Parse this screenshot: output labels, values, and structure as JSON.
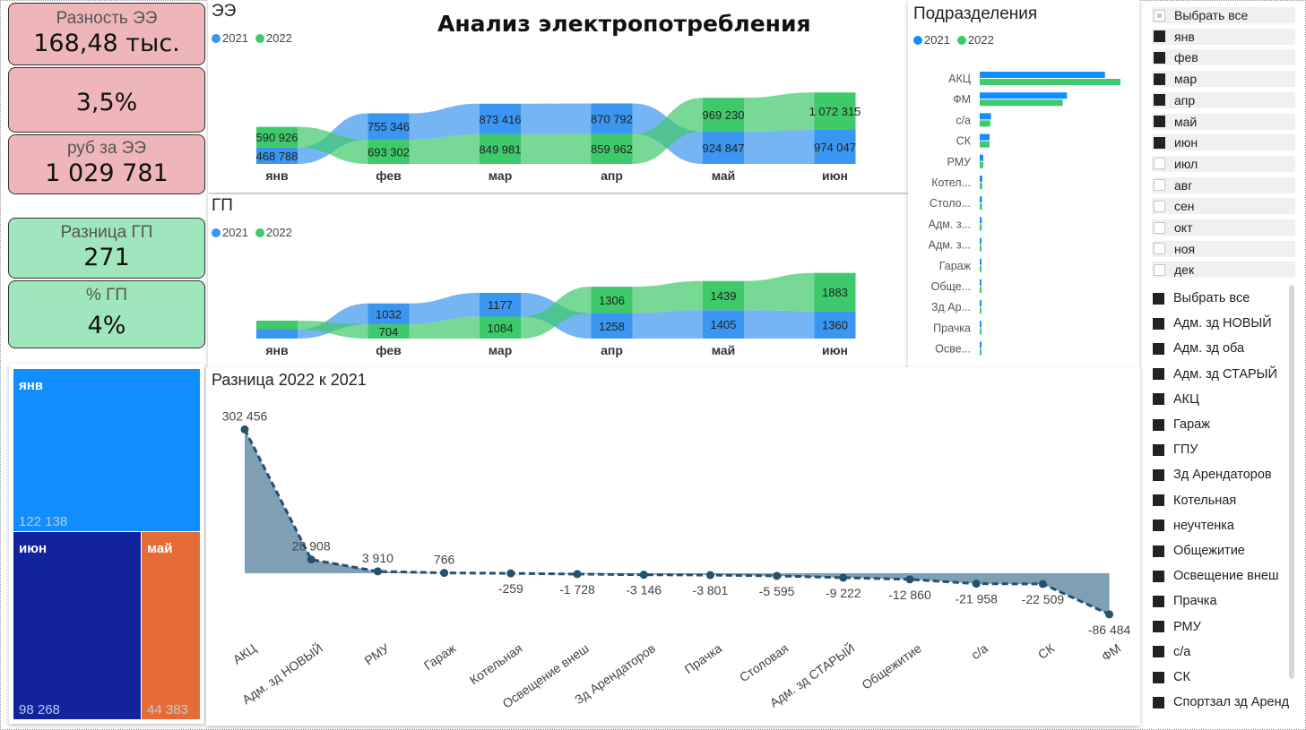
{
  "title": "Анализ электропотребления",
  "cards": {
    "ee_diff_label": "Разность ЭЭ",
    "ee_diff_value": "168,48 тыс.",
    "ee_pct_value": "3,5%",
    "rub_label": "руб за ЭЭ",
    "rub_value": "1 029 781",
    "gp_diff_label": "Разница ГП",
    "gp_diff_value": "271",
    "gp_pct_label": "% ГП",
    "gp_pct_value": "4%"
  },
  "colors": {
    "y2021": "#3a96f0",
    "y2022": "#3ec96a",
    "card_red": "#eeb6b9",
    "card_green": "#9fe6bd",
    "line": "#25506e",
    "area": "#7f9fb4"
  },
  "legend": {
    "y2021": "2021",
    "y2022": "2022"
  },
  "chart_data": [
    {
      "type": "area",
      "title": "ЭЭ",
      "categories": [
        "янв",
        "фев",
        "мар",
        "апр",
        "май",
        "июн"
      ],
      "series": [
        {
          "name": "2021",
          "values": [
            468788,
            755346,
            873416,
            870792,
            924847,
            974047
          ],
          "labels": [
            "468 788",
            "755 346",
            "873 416",
            "870 792",
            "924 847",
            "974 047"
          ]
        },
        {
          "name": "2022",
          "values": [
            590926,
            693302,
            849981,
            859962,
            969230,
            1072315
          ],
          "labels": [
            "590 926",
            "693 302",
            "849 981",
            "859 962",
            "969 230",
            "1 072 315"
          ]
        }
      ]
    },
    {
      "type": "area",
      "title": "ГП",
      "categories": [
        "янв",
        "фев",
        "мар",
        "апр",
        "май",
        "июн"
      ],
      "series": [
        {
          "name": "2021",
          "values": [
            null,
            1032,
            1177,
            1258,
            1405,
            1360
          ],
          "labels": [
            "",
            "1032",
            "1177",
            "1258",
            "1405",
            "1360"
          ]
        },
        {
          "name": "2022",
          "values": [
            null,
            704,
            1084,
            1306,
            1439,
            1883
          ],
          "labels": [
            "",
            "704",
            "1084",
            "1306",
            "1439",
            "1883"
          ]
        }
      ]
    },
    {
      "type": "bar",
      "title": "Подразделения",
      "categories": [
        "АКЦ",
        "ФМ",
        "с/а",
        "СК",
        "РМУ",
        "Котел...",
        "Столо...",
        "Адм. з...",
        "Адм. з...",
        "Гараж",
        "Обще...",
        "Зд Ар...",
        "Прачка",
        "Осве..."
      ],
      "series": [
        {
          "name": "2021",
          "values": [
            890,
            620,
            80,
            70,
            25,
            18,
            16,
            14,
            12,
            10,
            8,
            6,
            6,
            5
          ]
        },
        {
          "name": "2022",
          "values": [
            1000,
            590,
            75,
            70,
            25,
            18,
            16,
            14,
            12,
            10,
            8,
            6,
            6,
            5
          ]
        }
      ]
    },
    {
      "type": "line",
      "title": "Разница 2022 к 2021",
      "categories": [
        "АКЦ",
        "Адм. зд НОВЫЙ",
        "РМУ",
        "Гараж",
        "Котельная",
        "Освещение внеш",
        "Зд Арендаторов",
        "Прачка",
        "Столовая",
        "Адм. зд СТАРЫЙ",
        "Общежитие",
        "с/а",
        "СК",
        "ФМ"
      ],
      "values": [
        302456,
        28908,
        3910,
        766,
        -259,
        -1728,
        -3146,
        -3801,
        -5595,
        -9222,
        -12860,
        -21958,
        -22509,
        -86484
      ],
      "labels": [
        "302 456",
        "28 908",
        "3 910",
        "766",
        "-259",
        "-1 728",
        "-3 146",
        "-3 801",
        "-5 595",
        "-9 222",
        "-12 860",
        "-21 958",
        "-22 509",
        "-86 484"
      ]
    },
    {
      "type": "treemap",
      "categories": [
        "янв",
        "июн",
        "май"
      ],
      "values": [
        122138,
        98268,
        44383
      ],
      "labels": [
        "122 138",
        "98 268",
        "44 383"
      ],
      "colors": [
        "#118dff",
        "#12239e",
        "#e66c37"
      ]
    }
  ],
  "month_slicer": {
    "select_all": "Выбрать все",
    "items": [
      {
        "label": "янв",
        "checked": true
      },
      {
        "label": "фев",
        "checked": true
      },
      {
        "label": "мар",
        "checked": true
      },
      {
        "label": "апр",
        "checked": true
      },
      {
        "label": "май",
        "checked": true
      },
      {
        "label": "июн",
        "checked": true
      },
      {
        "label": "июл",
        "checked": false
      },
      {
        "label": "авг",
        "checked": false
      },
      {
        "label": "сен",
        "checked": false
      },
      {
        "label": "окт",
        "checked": false
      },
      {
        "label": "ноя",
        "checked": false
      },
      {
        "label": "дек",
        "checked": false
      }
    ]
  },
  "dept_slicer": {
    "items": [
      "Выбрать все",
      "Адм. зд НОВЫЙ",
      "Адм. зд оба",
      "Адм. зд СТАРЫЙ",
      "АКЦ",
      "Гараж",
      "ГПУ",
      "Зд Арендаторов",
      "Котельная",
      "неучтенка",
      "Общежитие",
      "Освещение внеш",
      "Прачка",
      "РМУ",
      "с/а",
      "СК",
      "Спортзал зд Аренд"
    ]
  }
}
